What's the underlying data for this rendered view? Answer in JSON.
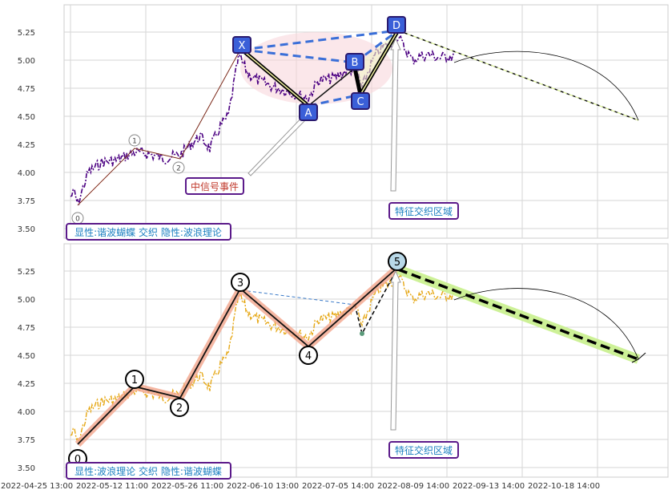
{
  "chart_data": [
    {
      "type": "line",
      "panel": "top",
      "ylim": [
        3.42,
        5.47
      ],
      "y_ticks": [
        "3.50",
        "3.75",
        "4.00",
        "4.25",
        "4.50",
        "4.75",
        "5.00",
        "5.25"
      ],
      "grid": true,
      "annotations": {
        "info_box": "显性:谐波蝴蝶 交织 隐性:波浪理论",
        "signal_box": "中信号事件",
        "zone_box": "特征交织区域"
      },
      "wave_labels": [
        "0",
        "1",
        "2"
      ],
      "harmonic_labels": [
        "X",
        "A",
        "B",
        "C",
        "D"
      ]
    },
    {
      "type": "line",
      "panel": "bottom",
      "ylim": [
        3.42,
        5.47
      ],
      "y_ticks": [
        "3.50",
        "3.75",
        "4.00",
        "4.25",
        "4.50",
        "4.75",
        "5.00",
        "5.25"
      ],
      "grid": true,
      "annotations": {
        "info_box": "显性:波浪理论 交织 隐性:谐波蝴蝶",
        "zone_box": "特征交织区域"
      },
      "wave_labels": [
        "0",
        "1",
        "2",
        "3",
        "4",
        "5"
      ],
      "x_tick_labels": [
        "2022-04-25 13:00",
        "2022-05-12 11:00",
        "2022-05-26 11:00",
        "2022-06-10 13:00",
        "2022-07-05 14:00",
        "2022-08-09 14:00",
        "2022-09-13 14:00",
        "2022-10-18 14:00"
      ]
    }
  ],
  "colors": {
    "top_price": "#4b0082",
    "bottom_price": "#e6a817",
    "harmonic_dashed": "#3a6fd8",
    "label_fill": "#3a5fd8",
    "label_border": "#2a1a6e",
    "box_border": "#5b1a8a",
    "box_text": "#1a7fc0",
    "signal_text": "#c0392b",
    "wave_glow": "#f3a58c",
    "projection_glow": "#c8f08c"
  }
}
